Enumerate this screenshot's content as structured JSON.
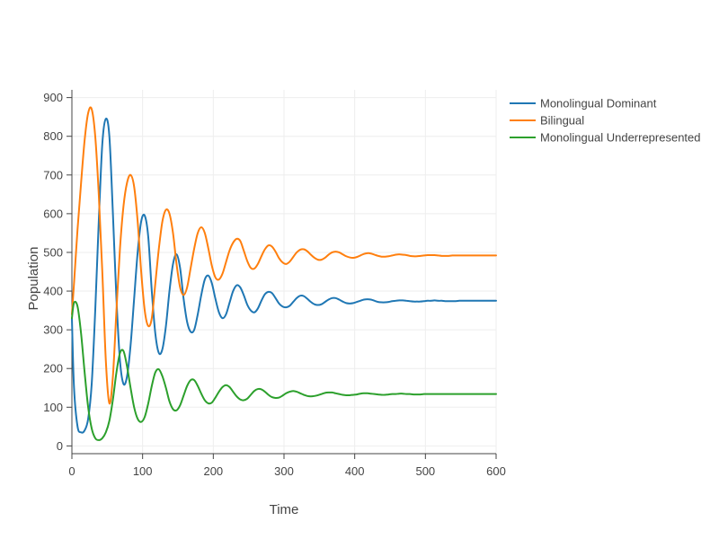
{
  "chart_data": {
    "type": "line",
    "xlabel": "Time",
    "ylabel": "Population",
    "xlim": [
      0,
      600
    ],
    "ylim": [
      -20,
      920
    ],
    "x_ticks": [
      0,
      100,
      200,
      300,
      400,
      500,
      600
    ],
    "y_ticks": [
      0,
      100,
      200,
      300,
      400,
      500,
      600,
      700,
      800,
      900
    ],
    "grid": true,
    "legend_position": "top-right",
    "series": [
      {
        "name": "Monolingual Dominant",
        "color": "#1f77b4",
        "x": [
          0,
          3,
          8,
          13,
          18,
          23,
          28,
          33,
          38,
          43,
          48,
          53,
          58,
          63,
          68,
          73,
          78,
          83,
          88,
          93,
          98,
          103,
          108,
          113,
          118,
          123,
          128,
          133,
          138,
          143,
          148,
          153,
          158,
          163,
          168,
          173,
          178,
          183,
          188,
          193,
          198,
          203,
          208,
          213,
          218,
          223,
          228,
          233,
          238,
          243,
          248,
          253,
          258,
          263,
          268,
          273,
          278,
          283,
          288,
          293,
          298,
          303,
          308,
          313,
          318,
          323,
          328,
          333,
          338,
          343,
          348,
          353,
          358,
          363,
          368,
          373,
          378,
          383,
          388,
          393,
          398,
          403,
          408,
          413,
          418,
          423,
          428,
          433,
          438,
          443,
          448,
          453,
          458,
          463,
          468,
          473,
          478,
          483,
          488,
          493,
          498,
          503,
          508,
          513,
          518,
          523,
          528,
          533,
          538,
          543,
          548,
          553,
          558,
          563,
          568,
          573,
          578,
          583,
          588,
          593,
          598,
          600
        ],
        "y": [
          330,
          150,
          50,
          35,
          40,
          70,
          160,
          350,
          580,
          780,
          845,
          800,
          600,
          380,
          220,
          160,
          180,
          260,
          380,
          500,
          580,
          595,
          540,
          400,
          290,
          240,
          250,
          310,
          400,
          470,
          495,
          460,
          380,
          320,
          295,
          300,
          340,
          390,
          430,
          440,
          420,
          380,
          345,
          330,
          340,
          370,
          400,
          415,
          410,
          390,
          365,
          350,
          345,
          355,
          375,
          392,
          398,
          395,
          382,
          368,
          360,
          358,
          362,
          372,
          382,
          388,
          387,
          380,
          372,
          366,
          364,
          366,
          372,
          378,
          382,
          382,
          378,
          373,
          369,
          368,
          369,
          372,
          375,
          378,
          379,
          378,
          375,
          372,
          371,
          371,
          372,
          374,
          375,
          376,
          376,
          375,
          374,
          373,
          373,
          373,
          374,
          375,
          375,
          376,
          375,
          375,
          374,
          374,
          374,
          374,
          375,
          375,
          375,
          375,
          375,
          375,
          375,
          375,
          375,
          375,
          375,
          375
        ]
      },
      {
        "name": "Bilingual",
        "color": "#ff7f0e",
        "x": [
          0,
          3,
          8,
          13,
          18,
          23,
          28,
          33,
          38,
          43,
          48,
          53,
          58,
          63,
          68,
          73,
          78,
          83,
          88,
          93,
          98,
          103,
          108,
          113,
          118,
          123,
          128,
          133,
          138,
          143,
          148,
          153,
          158,
          163,
          168,
          173,
          178,
          183,
          188,
          193,
          198,
          203,
          208,
          213,
          218,
          223,
          228,
          233,
          238,
          243,
          248,
          253,
          258,
          263,
          268,
          273,
          278,
          283,
          288,
          293,
          298,
          303,
          308,
          313,
          318,
          323,
          328,
          333,
          338,
          343,
          348,
          353,
          358,
          363,
          368,
          373,
          378,
          383,
          388,
          393,
          398,
          403,
          408,
          413,
          418,
          423,
          428,
          433,
          438,
          443,
          448,
          453,
          458,
          463,
          468,
          473,
          478,
          483,
          488,
          493,
          498,
          503,
          508,
          513,
          518,
          523,
          528,
          533,
          538,
          543,
          548,
          553,
          558,
          563,
          568,
          573,
          578,
          583,
          588,
          593,
          598,
          600
        ],
        "y": [
          340,
          420,
          560,
          680,
          790,
          860,
          870,
          800,
          650,
          450,
          220,
          110,
          180,
          350,
          510,
          620,
          680,
          700,
          670,
          580,
          450,
          350,
          310,
          330,
          420,
          510,
          580,
          610,
          600,
          550,
          470,
          410,
          390,
          410,
          460,
          510,
          550,
          565,
          550,
          510,
          465,
          435,
          430,
          445,
          475,
          505,
          525,
          535,
          530,
          505,
          478,
          460,
          458,
          470,
          490,
          508,
          518,
          515,
          502,
          485,
          474,
          470,
          476,
          488,
          500,
          507,
          508,
          503,
          494,
          486,
          481,
          481,
          486,
          494,
          500,
          502,
          500,
          495,
          490,
          487,
          486,
          488,
          492,
          496,
          498,
          497,
          494,
          491,
          489,
          489,
          490,
          492,
          494,
          495,
          494,
          493,
          491,
          490,
          490,
          491,
          492,
          493,
          493,
          493,
          492,
          491,
          491,
          491,
          492,
          492,
          492,
          492,
          492,
          492,
          492,
          492,
          492,
          492,
          492,
          492,
          492,
          492
        ]
      },
      {
        "name": "Monolingual Underrepresented",
        "color": "#2ca02c",
        "x": [
          0,
          3,
          8,
          13,
          18,
          23,
          28,
          33,
          38,
          43,
          48,
          53,
          58,
          63,
          68,
          73,
          78,
          83,
          88,
          93,
          98,
          103,
          108,
          113,
          118,
          123,
          128,
          133,
          138,
          143,
          148,
          153,
          158,
          163,
          168,
          173,
          178,
          183,
          188,
          193,
          198,
          203,
          208,
          213,
          218,
          223,
          228,
          233,
          238,
          243,
          248,
          253,
          258,
          263,
          268,
          273,
          278,
          283,
          288,
          293,
          298,
          303,
          308,
          313,
          318,
          323,
          328,
          333,
          338,
          343,
          348,
          353,
          358,
          363,
          368,
          373,
          378,
          383,
          388,
          393,
          398,
          403,
          408,
          413,
          418,
          423,
          428,
          433,
          438,
          443,
          448,
          453,
          458,
          463,
          468,
          473,
          478,
          483,
          488,
          493,
          498,
          503,
          508,
          513,
          518,
          523,
          528,
          533,
          538,
          543,
          548,
          553,
          558,
          563,
          568,
          573,
          578,
          583,
          588,
          593,
          598,
          600
        ],
        "y": [
          330,
          370,
          360,
          290,
          190,
          100,
          45,
          20,
          15,
          20,
          35,
          65,
          120,
          190,
          240,
          245,
          205,
          150,
          100,
          70,
          62,
          75,
          110,
          155,
          190,
          198,
          180,
          150,
          115,
          95,
          92,
          105,
          130,
          155,
          170,
          170,
          155,
          135,
          118,
          110,
          112,
          125,
          140,
          152,
          157,
          152,
          140,
          128,
          120,
          118,
          122,
          132,
          142,
          147,
          146,
          140,
          132,
          126,
          124,
          125,
          130,
          136,
          140,
          142,
          140,
          136,
          132,
          129,
          128,
          129,
          131,
          134,
          137,
          138,
          138,
          136,
          134,
          132,
          131,
          131,
          132,
          133,
          135,
          136,
          136,
          135,
          134,
          133,
          132,
          132,
          133,
          134,
          134,
          135,
          135,
          134,
          134,
          133,
          133,
          133,
          134,
          134,
          134,
          134,
          134,
          134,
          134,
          134,
          134,
          134,
          134,
          134,
          134,
          134,
          134,
          134,
          134,
          134,
          134,
          134,
          134,
          134
        ]
      }
    ]
  }
}
